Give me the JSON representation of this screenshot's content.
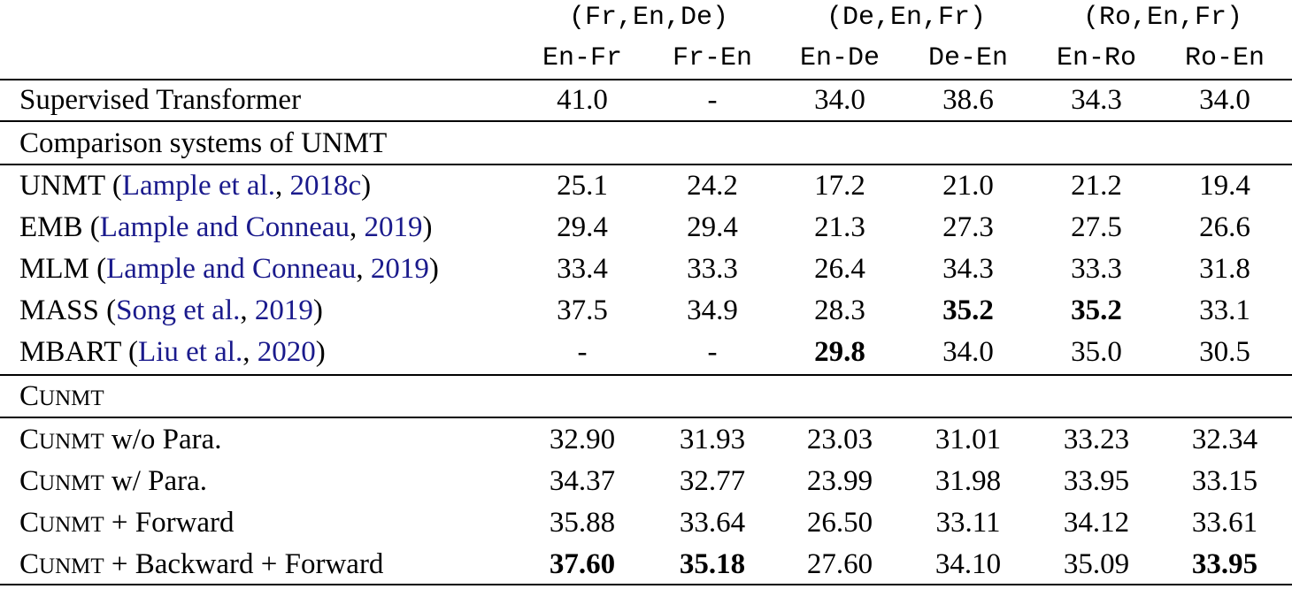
{
  "header": {
    "groups": [
      "(Fr,En,De)",
      "(De,En,Fr)",
      "(Ro,En,Fr)"
    ],
    "columns": [
      "En-Fr",
      "Fr-En",
      "En-De",
      "De-En",
      "En-Ro",
      "Ro-En"
    ]
  },
  "supervised": {
    "label": "Supervised Transformer",
    "values": [
      "41.0",
      "-",
      "34.0",
      "38.6",
      "34.3",
      "34.0"
    ]
  },
  "comparison": {
    "section_label": "Comparison systems of UNMT",
    "rows": [
      {
        "name": "UNMT (",
        "cite_author": "Lample et al.",
        "sep": ", ",
        "cite_year": "2018c",
        "close": ")",
        "values": [
          "25.1",
          "24.2",
          "17.2",
          "21.0",
          "21.2",
          "19.4"
        ]
      },
      {
        "name": "EMB (",
        "cite_author": "Lample and Conneau",
        "sep": ", ",
        "cite_year": "2019",
        "close": ")",
        "values": [
          "29.4",
          "29.4",
          "21.3",
          "27.3",
          "27.5",
          "26.6"
        ]
      },
      {
        "name": "MLM (",
        "cite_author": "Lample and Conneau",
        "sep": ", ",
        "cite_year": "2019",
        "close": ")",
        "values": [
          "33.4",
          "33.3",
          "26.4",
          "34.3",
          "33.3",
          "31.8"
        ]
      },
      {
        "name": "MASS (",
        "cite_author": "Song et al.",
        "sep": ", ",
        "cite_year": "2019",
        "close": ")",
        "values": [
          "37.5",
          "34.9",
          "28.3",
          "35.2",
          "35.2",
          "33.1"
        ]
      },
      {
        "name": "MBART (",
        "cite_author": "Liu et al.",
        "sep": ", ",
        "cite_year": "2020",
        "close": ")",
        "values": [
          "-",
          "-",
          "29.8",
          "34.0",
          "35.0",
          "30.5"
        ]
      }
    ]
  },
  "cunmt": {
    "section_first": "C",
    "section_rest": "UNMT",
    "rows": [
      {
        "first": "C",
        "rest": "UNMT",
        "suffix": " w/o Para.",
        "values": [
          "32.90",
          "31.93",
          "23.03",
          "31.01",
          "33.23",
          "32.34"
        ]
      },
      {
        "first": "C",
        "rest": "UNMT",
        "suffix": " w/ Para.",
        "values": [
          "34.37",
          "32.77",
          "23.99",
          "31.98",
          "33.95",
          "33.15"
        ]
      },
      {
        "first": "C",
        "rest": "UNMT",
        "suffix": " + Forward",
        "values": [
          "35.88",
          "33.64",
          "26.50",
          "33.11",
          "34.12",
          "33.61"
        ]
      },
      {
        "first": "C",
        "rest": "UNMT",
        "suffix": " + Backward + Forward",
        "values": [
          "37.60",
          "35.18",
          "27.60",
          "34.10",
          "35.09",
          "33.95"
        ]
      }
    ]
  },
  "bold_cells": {
    "comparison": [
      [
        3,
        3
      ],
      [
        3,
        4
      ],
      [
        4,
        2
      ]
    ],
    "cunmt": [
      [
        3,
        0
      ],
      [
        3,
        1
      ],
      [
        3,
        5
      ]
    ]
  },
  "colors": {
    "citation": "#1a1a8c",
    "text": "#000000",
    "rule": "#000000"
  }
}
